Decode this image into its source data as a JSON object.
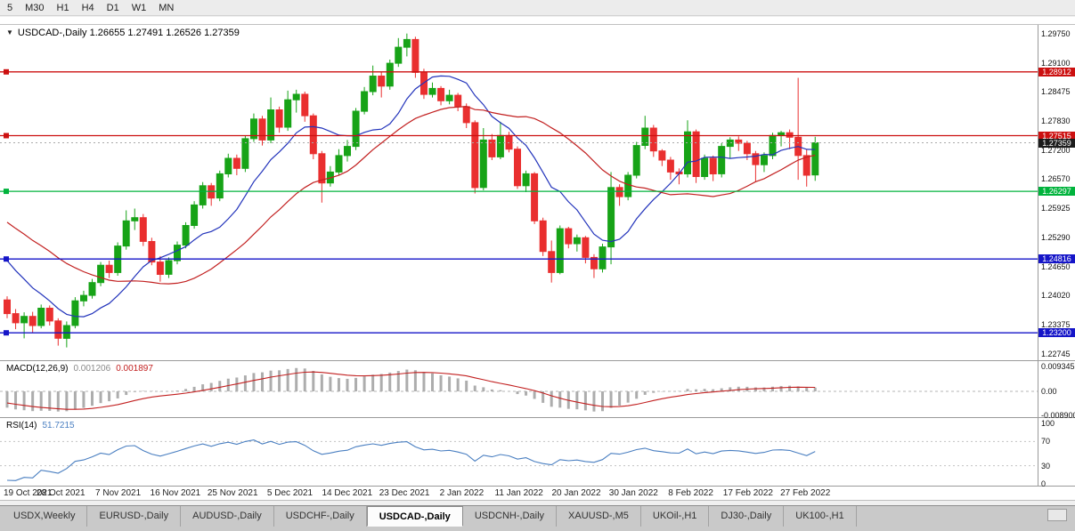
{
  "toolbar": {
    "timeframes": [
      "5",
      "M30",
      "H1",
      "H4",
      "D1",
      "W1",
      "MN"
    ]
  },
  "chart_title": {
    "symbol": "USDCAD-,Daily",
    "ohlc": "1.26655 1.27491 1.26526 1.27359",
    "open": "1.26655",
    "high": "1.27491",
    "low": "1.26526",
    "close": "1.27359"
  },
  "indicators": {
    "macd": {
      "name": "MACD(12,26,9)",
      "value_main": "0.001206",
      "value_signal": "0.001897",
      "fast": 12,
      "slow": 26,
      "signal": 9,
      "axis": [
        "0.009345",
        "0.00",
        "-0.008900"
      ]
    },
    "rsi": {
      "name": "RSI(14)",
      "value": "51.7215",
      "period": 14,
      "levels": [
        70,
        30
      ],
      "axis": [
        "100",
        "70",
        "30",
        "0"
      ]
    }
  },
  "chart_data": {
    "type": "candlestick",
    "symbol": "USDCAD-,Daily",
    "timeframe": "Daily",
    "price_range": {
      "max": 1.299,
      "min": 1.2262
    },
    "price_axis_ticks": [
      "1.29750",
      "1.29100",
      "1.28475",
      "1.27830",
      "1.27200",
      "1.26570",
      "1.25925",
      "1.25290",
      "1.24650",
      "1.24020",
      "1.23375",
      "1.22745"
    ],
    "levels": [
      {
        "price": 1.28912,
        "label": "1.28912",
        "color": "#cc1010"
      },
      {
        "price": 1.27515,
        "label": "1.27515",
        "color": "#cc1010"
      },
      {
        "price": 1.26297,
        "label": "1.26297",
        "color": "#00b33c"
      },
      {
        "price": 1.24816,
        "label": "1.24816",
        "color": "#1515c8"
      },
      {
        "price": 1.232,
        "label": "1.23200",
        "color": "#1515c8"
      }
    ],
    "current_price": {
      "value": 1.27359,
      "label": "1.27359",
      "label_bg": "#1c1c1c"
    },
    "x_labels": [
      "19 Oct 2021",
      "28 Oct 2021",
      "7 Nov 2021",
      "16 Nov 2021",
      "25 Nov 2021",
      "5 Dec 2021",
      "14 Dec 2021",
      "23 Dec 2021",
      "2 Jan 2022",
      "11 Jan 2022",
      "20 Jan 2022",
      "30 Jan 2022",
      "8 Feb 2022",
      "17 Feb 2022",
      "27 Feb 2022"
    ],
    "ma": [
      {
        "period": 10,
        "color": "#2233bb"
      },
      {
        "period": 24,
        "color": "#c22020"
      }
    ],
    "colors": {
      "bull": "#17a317",
      "bear": "#e92f2f",
      "macd_hist": "#adadad",
      "macd_signal": "#c22020",
      "rsi_line": "#4a7fc1"
    },
    "pre_closes": [
      1.2662,
      1.2655,
      1.264,
      1.2648,
      1.2632,
      1.262,
      1.2605,
      1.2598,
      1.261,
      1.2588,
      1.257,
      1.2555,
      1.256,
      1.2542,
      1.2528,
      1.251,
      1.2495,
      1.2478,
      1.246,
      1.2435,
      1.241
    ],
    "candles": [
      [
        1.2392,
        1.24,
        1.2352,
        1.2362
      ],
      [
        1.2362,
        1.2372,
        1.2328,
        1.2342
      ],
      [
        1.2342,
        1.2365,
        1.2308,
        1.2356
      ],
      [
        1.2356,
        1.2366,
        1.232,
        1.2336
      ],
      [
        1.2336,
        1.2382,
        1.233,
        1.2374
      ],
      [
        1.2374,
        1.238,
        1.2336,
        1.2346
      ],
      [
        1.2346,
        1.2352,
        1.2292,
        1.2308
      ],
      [
        1.2308,
        1.2345,
        1.2288,
        1.2336
      ],
      [
        1.2336,
        1.2398,
        1.233,
        1.239
      ],
      [
        1.239,
        1.2412,
        1.2378,
        1.2402
      ],
      [
        1.2402,
        1.2438,
        1.2395,
        1.243
      ],
      [
        1.243,
        1.2475,
        1.2422,
        1.2468
      ],
      [
        1.2468,
        1.2478,
        1.244,
        1.2452
      ],
      [
        1.2452,
        1.2518,
        1.2445,
        1.251
      ],
      [
        1.251,
        1.2588,
        1.2502,
        1.2565
      ],
      [
        1.2565,
        1.2592,
        1.2545,
        1.2572
      ],
      [
        1.2572,
        1.258,
        1.251,
        1.252
      ],
      [
        1.252,
        1.2528,
        1.2468,
        1.2475
      ],
      [
        1.2475,
        1.2488,
        1.2432,
        1.2448
      ],
      [
        1.2448,
        1.2485,
        1.244,
        1.2478
      ],
      [
        1.2478,
        1.252,
        1.247,
        1.2512
      ],
      [
        1.2512,
        1.2562,
        1.2505,
        1.2555
      ],
      [
        1.2555,
        1.2608,
        1.2548,
        1.26
      ],
      [
        1.26,
        1.265,
        1.2592,
        1.2642
      ],
      [
        1.2642,
        1.2648,
        1.2598,
        1.2615
      ],
      [
        1.2615,
        1.2675,
        1.2608,
        1.2668
      ],
      [
        1.2668,
        1.2712,
        1.266,
        1.2702
      ],
      [
        1.2702,
        1.271,
        1.2665,
        1.268
      ],
      [
        1.268,
        1.2752,
        1.2672,
        1.2745
      ],
      [
        1.2745,
        1.28,
        1.2738,
        1.2788
      ],
      [
        1.2788,
        1.2795,
        1.273,
        1.2742
      ],
      [
        1.2742,
        1.2835,
        1.2735,
        1.2808
      ],
      [
        1.2808,
        1.2815,
        1.2758,
        1.277
      ],
      [
        1.277,
        1.285,
        1.2762,
        1.283
      ],
      [
        1.283,
        1.2852,
        1.2802,
        1.2842
      ],
      [
        1.2842,
        1.2848,
        1.2782,
        1.2795
      ],
      [
        1.2795,
        1.28,
        1.27,
        1.2712
      ],
      [
        1.2712,
        1.2718,
        1.2605,
        1.2648
      ],
      [
        1.2648,
        1.2685,
        1.264,
        1.2672
      ],
      [
        1.2672,
        1.2722,
        1.2665,
        1.2708
      ],
      [
        1.2708,
        1.2742,
        1.2695,
        1.2728
      ],
      [
        1.2728,
        1.2812,
        1.272,
        1.2805
      ],
      [
        1.2805,
        1.2858,
        1.2798,
        1.2848
      ],
      [
        1.2848,
        1.2905,
        1.284,
        1.2882
      ],
      [
        1.2882,
        1.289,
        1.2835,
        1.286
      ],
      [
        1.286,
        1.2918,
        1.2852,
        1.291
      ],
      [
        1.291,
        1.2965,
        1.2902,
        1.2945
      ],
      [
        1.2945,
        1.2975,
        1.2925,
        1.2962
      ],
      [
        1.2962,
        1.2968,
        1.2878,
        1.289
      ],
      [
        1.289,
        1.2898,
        1.2832,
        1.2842
      ],
      [
        1.2842,
        1.2868,
        1.2835,
        1.2855
      ],
      [
        1.2855,
        1.286,
        1.2818,
        1.2828
      ],
      [
        1.2828,
        1.2852,
        1.282,
        1.284
      ],
      [
        1.284,
        1.2845,
        1.2805,
        1.2815
      ],
      [
        1.2815,
        1.2822,
        1.2768,
        1.278
      ],
      [
        1.278,
        1.2785,
        1.2625,
        1.2638
      ],
      [
        1.2638,
        1.2768,
        1.2632,
        1.2742
      ],
      [
        1.2742,
        1.2755,
        1.2698,
        1.2705
      ],
      [
        1.2705,
        1.2782,
        1.27,
        1.2752
      ],
      [
        1.2752,
        1.276,
        1.2715,
        1.2722
      ],
      [
        1.2722,
        1.2728,
        1.2635,
        1.2642
      ],
      [
        1.2642,
        1.2675,
        1.2628,
        1.2668
      ],
      [
        1.2668,
        1.2672,
        1.2558,
        1.2565
      ],
      [
        1.2565,
        1.2572,
        1.2488,
        1.2498
      ],
      [
        1.2498,
        1.2522,
        1.243,
        1.2452
      ],
      [
        1.2452,
        1.2555,
        1.2448,
        1.2548
      ],
      [
        1.2548,
        1.2552,
        1.2505,
        1.2515
      ],
      [
        1.2515,
        1.2535,
        1.2498,
        1.2528
      ],
      [
        1.2528,
        1.2532,
        1.2472,
        1.2485
      ],
      [
        1.2485,
        1.2492,
        1.244,
        1.246
      ],
      [
        1.246,
        1.2515,
        1.2452,
        1.2508
      ],
      [
        1.2508,
        1.2672,
        1.247,
        1.2638
      ],
      [
        1.2638,
        1.2645,
        1.2598,
        1.2618
      ],
      [
        1.2618,
        1.2672,
        1.261,
        1.2665
      ],
      [
        1.2665,
        1.2738,
        1.2658,
        1.273
      ],
      [
        1.273,
        1.2795,
        1.2722,
        1.2768
      ],
      [
        1.2768,
        1.2775,
        1.2705,
        1.2718
      ],
      [
        1.2718,
        1.2722,
        1.2685,
        1.2698
      ],
      [
        1.2698,
        1.2705,
        1.2655,
        1.2672
      ],
      [
        1.2672,
        1.268,
        1.2645,
        1.2668
      ],
      [
        1.2668,
        1.2785,
        1.266,
        1.276
      ],
      [
        1.276,
        1.2765,
        1.2648,
        1.2662
      ],
      [
        1.2662,
        1.271,
        1.2655,
        1.2702
      ],
      [
        1.2702,
        1.2708,
        1.2652,
        1.2668
      ],
      [
        1.2668,
        1.2735,
        1.266,
        1.2728
      ],
      [
        1.2728,
        1.2748,
        1.2702,
        1.2742
      ],
      [
        1.2742,
        1.275,
        1.2718,
        1.2735
      ],
      [
        1.2735,
        1.274,
        1.2698,
        1.2712
      ],
      [
        1.2712,
        1.2718,
        1.265,
        1.2688
      ],
      [
        1.2688,
        1.2715,
        1.2672,
        1.2708
      ],
      [
        1.2708,
        1.2758,
        1.27,
        1.2752
      ],
      [
        1.2752,
        1.2762,
        1.2728,
        1.2758
      ],
      [
        1.2758,
        1.2765,
        1.2722,
        1.2748
      ],
      [
        1.2748,
        1.2878,
        1.2655,
        1.2708
      ],
      [
        1.2708,
        1.2722,
        1.264,
        1.2665
      ],
      [
        1.26655,
        1.27491,
        1.26526,
        1.27359
      ]
    ]
  },
  "tabs": {
    "items": [
      {
        "label": "USDX,Weekly",
        "active": false
      },
      {
        "label": "EURUSD-,Daily",
        "active": false
      },
      {
        "label": "AUDUSD-,Daily",
        "active": false
      },
      {
        "label": "USDCHF-,Daily",
        "active": false
      },
      {
        "label": "USDCAD-,Daily",
        "active": true
      },
      {
        "label": "USDCNH-,Daily",
        "active": false
      },
      {
        "label": "XAUUSD-,M5",
        "active": false
      },
      {
        "label": "UKOil-,H1",
        "active": false
      },
      {
        "label": "DJ30-,Daily",
        "active": false
      },
      {
        "label": "UK100-,H1",
        "active": false
      }
    ]
  }
}
